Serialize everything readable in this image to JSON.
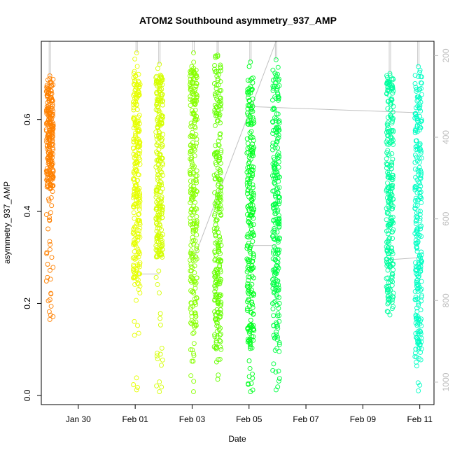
{
  "chart_data": {
    "type": "scatter",
    "title": "ATOM2 Southbound asymmetry_937_AMP",
    "xlabel": "Date",
    "ylabel": "asymmetry_937_AMP",
    "x_ticks": [
      "Jan 30",
      "Feb 01",
      "Feb 03",
      "Feb 05",
      "Feb 07",
      "Feb 09",
      "Feb 11"
    ],
    "x_tick_days": [
      30,
      32,
      34,
      36,
      38,
      40,
      42
    ],
    "xlim_days": [
      28.7,
      42.5
    ],
    "y_ticks": [
      "0.0",
      "0.2",
      "0.4",
      "0.6"
    ],
    "y_tick_values": [
      0.0,
      0.2,
      0.4,
      0.6
    ],
    "ylim": [
      -0.02,
      0.77
    ],
    "y2_ticks": [
      "200",
      "400",
      "600",
      "800",
      "1000"
    ],
    "y2_tick_values": [
      200,
      400,
      600,
      800,
      1000
    ],
    "y2lim": [
      1055,
      165
    ],
    "grid": false,
    "legend": "none",
    "marker": "open-circle",
    "clusters": [
      {
        "day": 29.0,
        "ymin": 0.165,
        "ymax": 0.695,
        "dense_min": 0.45,
        "dense_max": 0.69,
        "color": "#FF8000"
      },
      {
        "day": 32.05,
        "ymin": 0.012,
        "ymax": 0.745,
        "dense_min": 0.25,
        "dense_max": 0.7,
        "color": "#E6FF00"
      },
      {
        "day": 32.85,
        "ymin": 0.008,
        "ymax": 0.72,
        "dense_min": 0.3,
        "dense_max": 0.7,
        "color": "#D4FF00"
      },
      {
        "day": 34.05,
        "ymin": 0.008,
        "ymax": 0.745,
        "dense_min": 0.15,
        "dense_max": 0.72,
        "color": "#88FF00"
      },
      {
        "day": 34.9,
        "ymin": 0.035,
        "ymax": 0.74,
        "dense_min": 0.1,
        "dense_max": 0.72,
        "color": "#66FF00"
      },
      {
        "day": 36.05,
        "ymin": 0.008,
        "ymax": 0.725,
        "dense_min": 0.1,
        "dense_max": 0.7,
        "color": "#00FF20"
      },
      {
        "day": 36.95,
        "ymin": 0.012,
        "ymax": 0.73,
        "dense_min": 0.1,
        "dense_max": 0.71,
        "color": "#00FF44"
      },
      {
        "day": 40.95,
        "ymin": 0.175,
        "ymax": 0.7,
        "dense_min": 0.2,
        "dense_max": 0.7,
        "color": "#00FFA0"
      },
      {
        "day": 41.95,
        "ymin": 0.01,
        "ymax": 0.715,
        "dense_min": 0.08,
        "dense_max": 0.71,
        "color": "#00FFC4"
      }
    ],
    "connector_y2_values": [
      {
        "x0": 32.05,
        "y0": 160,
        "x1": 32.05,
        "y1": 160
      },
      {
        "x0": 32.05,
        "y0": 735,
        "x1": 32.85,
        "y1": 735
      },
      {
        "x0": 34.05,
        "y0": 700,
        "x1": 36.95,
        "y1": 130
      },
      {
        "x0": 36.05,
        "y0": 325,
        "x1": 41.95,
        "y1": 340
      },
      {
        "x0": 36.05,
        "y0": 665,
        "x1": 36.95,
        "y1": 665
      },
      {
        "x0": 40.95,
        "y0": 700,
        "x1": 41.95,
        "y1": 695
      }
    ]
  }
}
